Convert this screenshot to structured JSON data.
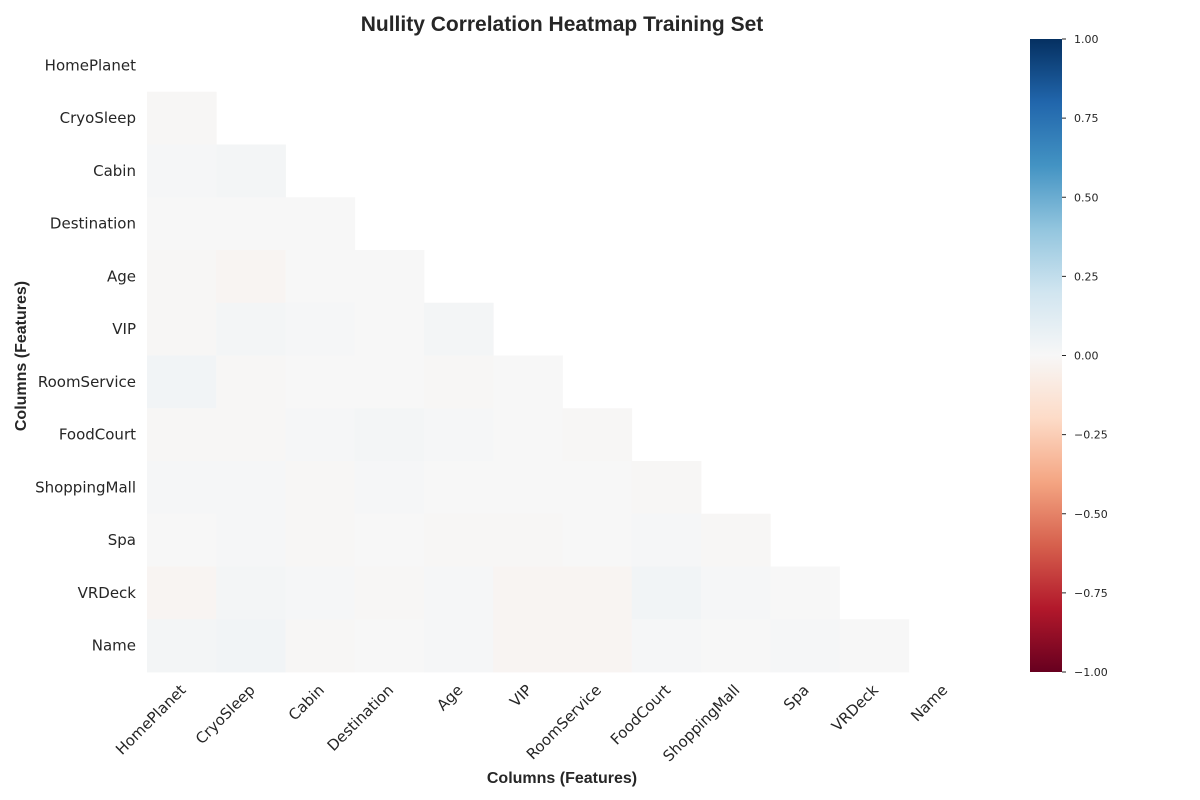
{
  "chart_data": {
    "type": "heatmap",
    "title": "Nullity Correlation Heatmap Training Set",
    "xlabel": "Columns (Features)",
    "ylabel": "Columns (Features)",
    "mask": "upper-triangle",
    "labels": [
      "HomePlanet",
      "CryoSleep",
      "Cabin",
      "Destination",
      "Age",
      "VIP",
      "RoomService",
      "FoodCourt",
      "ShoppingMall",
      "Spa",
      "VRDeck",
      "Name"
    ],
    "values": [
      [
        null,
        null,
        null,
        null,
        null,
        null,
        null,
        null,
        null,
        null,
        null,
        null
      ],
      [
        -0.01,
        null,
        null,
        null,
        null,
        null,
        null,
        null,
        null,
        null,
        null,
        null
      ],
      [
        0.01,
        0.02,
        null,
        null,
        null,
        null,
        null,
        null,
        null,
        null,
        null,
        null
      ],
      [
        0.0,
        0.0,
        -0.0,
        null,
        null,
        null,
        null,
        null,
        null,
        null,
        null,
        null
      ],
      [
        -0.01,
        -0.02,
        0.0,
        0.0,
        null,
        null,
        null,
        null,
        null,
        null,
        null,
        null
      ],
      [
        -0.01,
        0.02,
        0.01,
        0.0,
        0.02,
        null,
        null,
        null,
        null,
        null,
        null,
        null
      ],
      [
        0.03,
        -0.01,
        -0.0,
        0.0,
        -0.01,
        0.0,
        null,
        null,
        null,
        null,
        null,
        null
      ],
      [
        -0.01,
        -0.01,
        0.01,
        0.02,
        0.01,
        0.0,
        -0.01,
        null,
        null,
        null,
        null,
        null
      ],
      [
        0.01,
        0.01,
        -0.01,
        0.01,
        0.0,
        0.0,
        0.0,
        -0.01,
        null,
        null,
        null,
        null
      ],
      [
        0.0,
        0.01,
        -0.01,
        -0.0,
        -0.01,
        -0.01,
        -0.0,
        0.01,
        -0.01,
        null,
        null,
        null
      ],
      [
        -0.02,
        0.02,
        0.01,
        -0.01,
        0.01,
        -0.02,
        -0.02,
        0.03,
        0.01,
        0.0,
        null,
        null
      ],
      [
        0.02,
        0.03,
        -0.01,
        0.0,
        0.01,
        -0.02,
        -0.02,
        0.01,
        0.0,
        0.01,
        0.0,
        null
      ]
    ],
    "vmin": -1.0,
    "vmax": 1.0,
    "colormap": "RdBu",
    "colorbar_ticks": [
      "1.00",
      "0.75",
      "0.50",
      "0.25",
      "0.00",
      "−0.25",
      "−0.50",
      "−0.75",
      "−1.00"
    ],
    "colorbar_values": [
      1.0,
      0.75,
      0.5,
      0.25,
      0.0,
      -0.25,
      -0.5,
      -0.75,
      -1.0
    ],
    "grid": false
  }
}
